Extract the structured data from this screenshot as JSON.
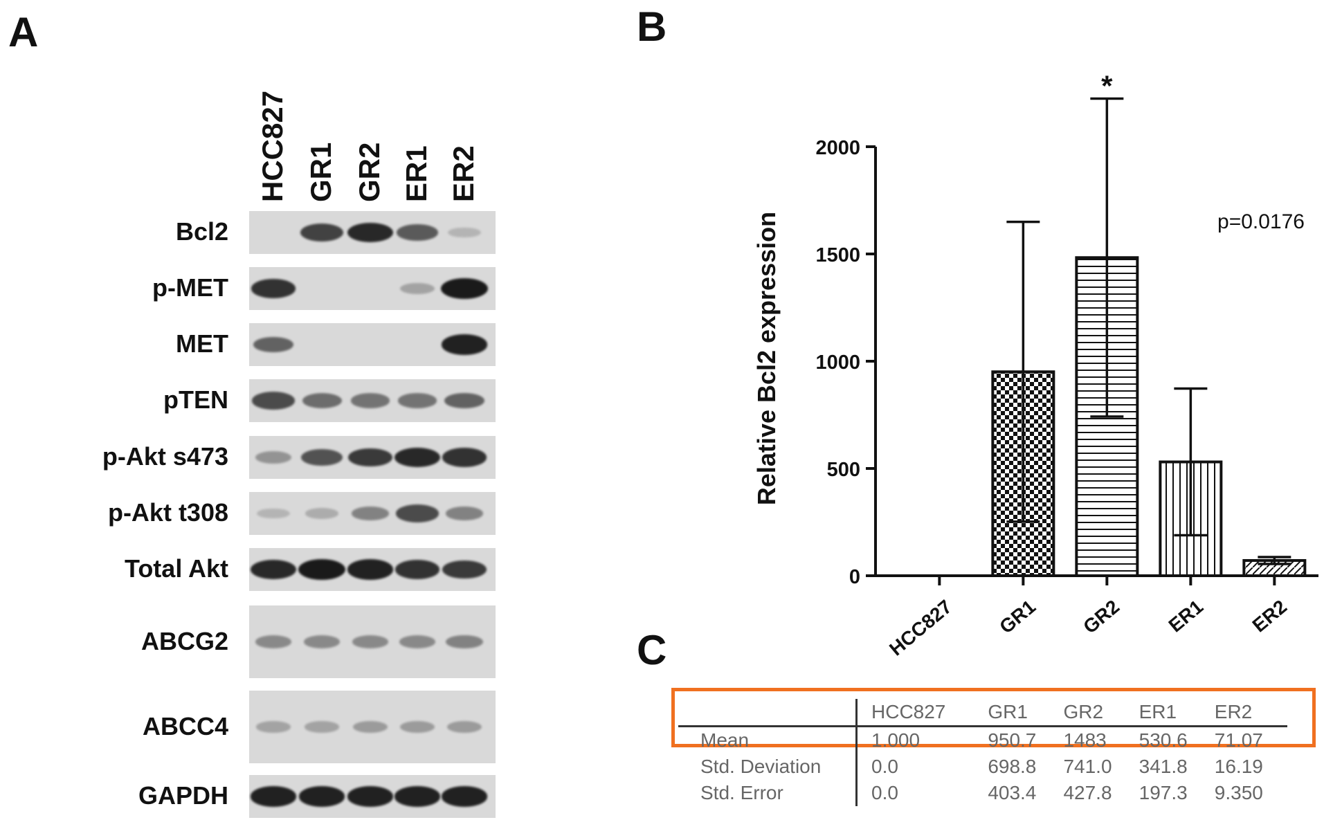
{
  "panels": {
    "a": "A",
    "b": "B",
    "c": "C"
  },
  "blot": {
    "lanes": [
      "HCC827",
      "GR1",
      "GR2",
      "ER1",
      "ER2"
    ],
    "rows": [
      {
        "label": "Bcl2",
        "intensity": [
          0.0,
          0.75,
          0.9,
          0.6,
          0.05
        ]
      },
      {
        "label": "p-MET",
        "intensity": [
          0.85,
          0.0,
          0.0,
          0.15,
          1.0
        ]
      },
      {
        "label": "MET",
        "intensity": [
          0.55,
          0.0,
          0.0,
          0.0,
          0.95
        ]
      },
      {
        "label": "pTEN",
        "intensity": [
          0.7,
          0.5,
          0.45,
          0.45,
          0.55
        ]
      },
      {
        "label": "p-Akt s473",
        "intensity": [
          0.25,
          0.65,
          0.8,
          0.9,
          0.85
        ]
      },
      {
        "label": "p-Akt t308",
        "intensity": [
          0.05,
          0.1,
          0.35,
          0.7,
          0.35
        ]
      },
      {
        "label": "Total Akt",
        "intensity": [
          0.9,
          1.0,
          0.95,
          0.85,
          0.8
        ]
      },
      {
        "label": "ABCG2",
        "intensity": [
          0.3,
          0.3,
          0.3,
          0.3,
          0.35
        ]
      },
      {
        "label": "ABCC4",
        "intensity": [
          0.15,
          0.15,
          0.2,
          0.2,
          0.2
        ]
      },
      {
        "label": "GAPDH",
        "intensity": [
          0.95,
          0.95,
          0.95,
          0.95,
          0.95
        ]
      }
    ],
    "band_color": "#1a1a1a",
    "strip_color": "#d9d9d9"
  },
  "chart_data": {
    "type": "bar",
    "categories": [
      "HCC827",
      "GR1",
      "GR2",
      "ER1",
      "ER2"
    ],
    "values": [
      1.0,
      950.7,
      1483,
      530.6,
      71.07
    ],
    "error_sd": [
      0.0,
      698.8,
      741.0,
      341.8,
      16.19
    ],
    "patterns": [
      "none",
      "checker",
      "horizontal",
      "vertical",
      "diagonal"
    ],
    "ylabel": "Relative Bcl2 expression",
    "xlabel": "",
    "ylim": [
      0,
      2000
    ],
    "yticks": [
      "0",
      "500",
      "1000",
      "1500",
      "2000"
    ],
    "annotation": "p=0.0176",
    "significance": {
      "category": "GR2",
      "mark": "*"
    },
    "grid": false
  },
  "table": {
    "headers": [
      "",
      "HCC827",
      "GR1",
      "GR2",
      "ER1",
      "ER2"
    ],
    "rows": [
      {
        "label": "Mean",
        "values": [
          "1.000",
          "950.7",
          "1483",
          "530.6",
          "71.07"
        ]
      },
      {
        "label": "Std. Deviation",
        "values": [
          "0.0",
          "698.8",
          "741.0",
          "341.8",
          "16.19"
        ]
      },
      {
        "label": "Std. Error",
        "values": [
          "0.0",
          "403.4",
          "427.8",
          "197.3",
          "9.350"
        ]
      }
    ],
    "highlight_color": "#f07020"
  }
}
